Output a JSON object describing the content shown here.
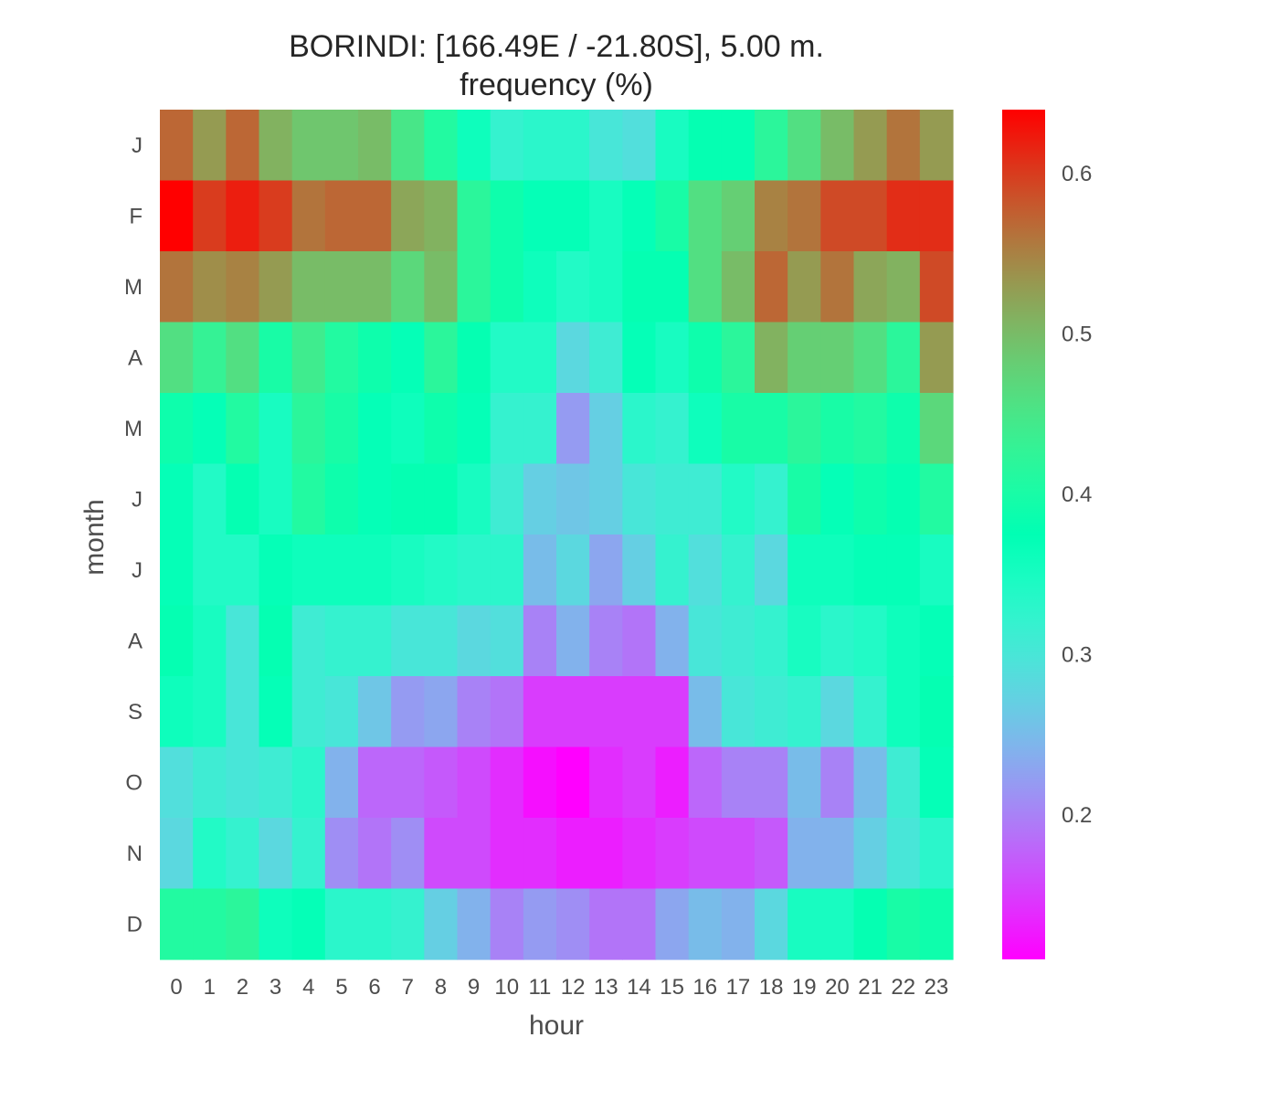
{
  "chart_data": {
    "type": "heatmap",
    "title": "BORINDI: [166.49E / -21.80S], 5.00 m.",
    "subtitle": "frequency (%)",
    "xlabel": "hour",
    "ylabel": "month",
    "x_categories": [
      "0",
      "1",
      "2",
      "3",
      "4",
      "5",
      "6",
      "7",
      "8",
      "9",
      "10",
      "11",
      "12",
      "13",
      "14",
      "15",
      "16",
      "17",
      "18",
      "19",
      "20",
      "21",
      "22",
      "23"
    ],
    "y_categories": [
      "J",
      "F",
      "M",
      "A",
      "M",
      "J",
      "J",
      "A",
      "S",
      "O",
      "N",
      "D"
    ],
    "colorbar": {
      "colormap": "rainbow",
      "vmin": 0.11,
      "vmax": 0.64,
      "ticks": [
        0.2,
        0.3,
        0.4,
        0.5,
        0.6
      ],
      "tick_labels": [
        "0.2",
        "0.3",
        "0.4",
        "0.5",
        "0.6"
      ]
    },
    "grid": false,
    "values": [
      [
        0.57,
        0.53,
        0.57,
        0.51,
        0.49,
        0.49,
        0.5,
        0.45,
        0.41,
        0.36,
        0.32,
        0.33,
        0.33,
        0.3,
        0.29,
        0.35,
        0.38,
        0.38,
        0.42,
        0.46,
        0.5,
        0.53,
        0.56,
        0.53
      ],
      [
        0.64,
        0.6,
        0.62,
        0.6,
        0.56,
        0.57,
        0.57,
        0.52,
        0.51,
        0.42,
        0.39,
        0.37,
        0.37,
        0.35,
        0.37,
        0.4,
        0.46,
        0.48,
        0.55,
        0.56,
        0.59,
        0.59,
        0.61,
        0.61
      ],
      [
        0.56,
        0.54,
        0.55,
        0.53,
        0.5,
        0.5,
        0.5,
        0.47,
        0.5,
        0.42,
        0.39,
        0.36,
        0.34,
        0.35,
        0.38,
        0.38,
        0.46,
        0.5,
        0.57,
        0.53,
        0.56,
        0.52,
        0.51,
        0.59
      ],
      [
        0.46,
        0.43,
        0.46,
        0.4,
        0.44,
        0.41,
        0.39,
        0.37,
        0.42,
        0.38,
        0.34,
        0.34,
        0.28,
        0.31,
        0.37,
        0.35,
        0.39,
        0.42,
        0.51,
        0.48,
        0.48,
        0.46,
        0.42,
        0.53
      ],
      [
        0.39,
        0.37,
        0.41,
        0.35,
        0.42,
        0.4,
        0.37,
        0.36,
        0.39,
        0.37,
        0.32,
        0.32,
        0.22,
        0.27,
        0.33,
        0.32,
        0.36,
        0.4,
        0.4,
        0.42,
        0.4,
        0.41,
        0.39,
        0.47
      ],
      [
        0.37,
        0.34,
        0.38,
        0.35,
        0.41,
        0.39,
        0.37,
        0.38,
        0.38,
        0.35,
        0.31,
        0.27,
        0.26,
        0.27,
        0.3,
        0.31,
        0.31,
        0.34,
        0.32,
        0.4,
        0.37,
        0.39,
        0.38,
        0.41
      ],
      [
        0.37,
        0.34,
        0.34,
        0.37,
        0.36,
        0.36,
        0.36,
        0.35,
        0.34,
        0.33,
        0.33,
        0.25,
        0.28,
        0.23,
        0.27,
        0.32,
        0.29,
        0.32,
        0.28,
        0.36,
        0.36,
        0.37,
        0.37,
        0.35
      ],
      [
        0.38,
        0.35,
        0.3,
        0.38,
        0.31,
        0.32,
        0.32,
        0.3,
        0.3,
        0.28,
        0.29,
        0.2,
        0.24,
        0.2,
        0.19,
        0.24,
        0.3,
        0.31,
        0.32,
        0.35,
        0.33,
        0.34,
        0.36,
        0.37
      ],
      [
        0.36,
        0.35,
        0.3,
        0.37,
        0.31,
        0.3,
        0.26,
        0.22,
        0.23,
        0.2,
        0.19,
        0.15,
        0.15,
        0.15,
        0.15,
        0.15,
        0.25,
        0.3,
        0.31,
        0.32,
        0.28,
        0.32,
        0.36,
        0.38
      ],
      [
        0.29,
        0.31,
        0.3,
        0.31,
        0.33,
        0.24,
        0.18,
        0.18,
        0.17,
        0.16,
        0.14,
        0.12,
        0.11,
        0.14,
        0.15,
        0.13,
        0.18,
        0.2,
        0.2,
        0.25,
        0.2,
        0.25,
        0.31,
        0.37
      ],
      [
        0.28,
        0.34,
        0.32,
        0.28,
        0.32,
        0.21,
        0.19,
        0.21,
        0.16,
        0.16,
        0.14,
        0.14,
        0.13,
        0.13,
        0.14,
        0.15,
        0.16,
        0.16,
        0.17,
        0.24,
        0.24,
        0.27,
        0.3,
        0.33
      ],
      [
        0.41,
        0.41,
        0.42,
        0.36,
        0.37,
        0.33,
        0.33,
        0.32,
        0.27,
        0.24,
        0.2,
        0.22,
        0.21,
        0.19,
        0.19,
        0.23,
        0.25,
        0.24,
        0.28,
        0.35,
        0.35,
        0.38,
        0.4,
        0.39
      ]
    ]
  }
}
